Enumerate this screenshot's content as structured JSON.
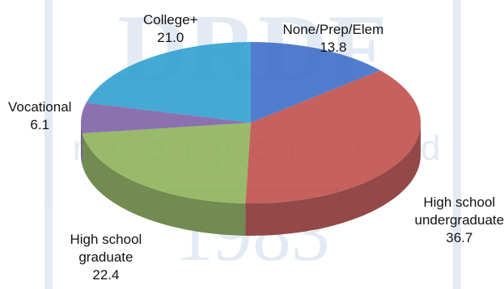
{
  "watermark": {
    "logo_text": "DRDF",
    "tagline": "incorporated",
    "year": "1983",
    "color": "#2f63b0"
  },
  "chart_data": {
    "type": "pie",
    "style": "3d",
    "unit": "%",
    "slices": [
      {
        "name": "None/Prep/Elem",
        "label_lines": [
          "None/Prep/Elem"
        ],
        "value": 13.8,
        "value_label": "13.8",
        "color": "#3f6fc9"
      },
      {
        "name": "High school undergraduate",
        "label_lines": [
          "High school",
          "undergraduate"
        ],
        "value": 36.7,
        "value_label": "36.7",
        "color": "#c0504d"
      },
      {
        "name": "High school graduate",
        "label_lines": [
          "High school",
          "graduate"
        ],
        "value": 22.4,
        "value_label": "22.4",
        "color": "#8db35a"
      },
      {
        "name": "Vocational",
        "label_lines": [
          "Vocational"
        ],
        "value": 6.1,
        "value_label": "6.1",
        "color": "#7f62a8"
      },
      {
        "name": "College+",
        "label_lines": [
          "College+"
        ],
        "value": 21.0,
        "value_label": "21.0",
        "color": "#31a0d0"
      }
    ]
  }
}
